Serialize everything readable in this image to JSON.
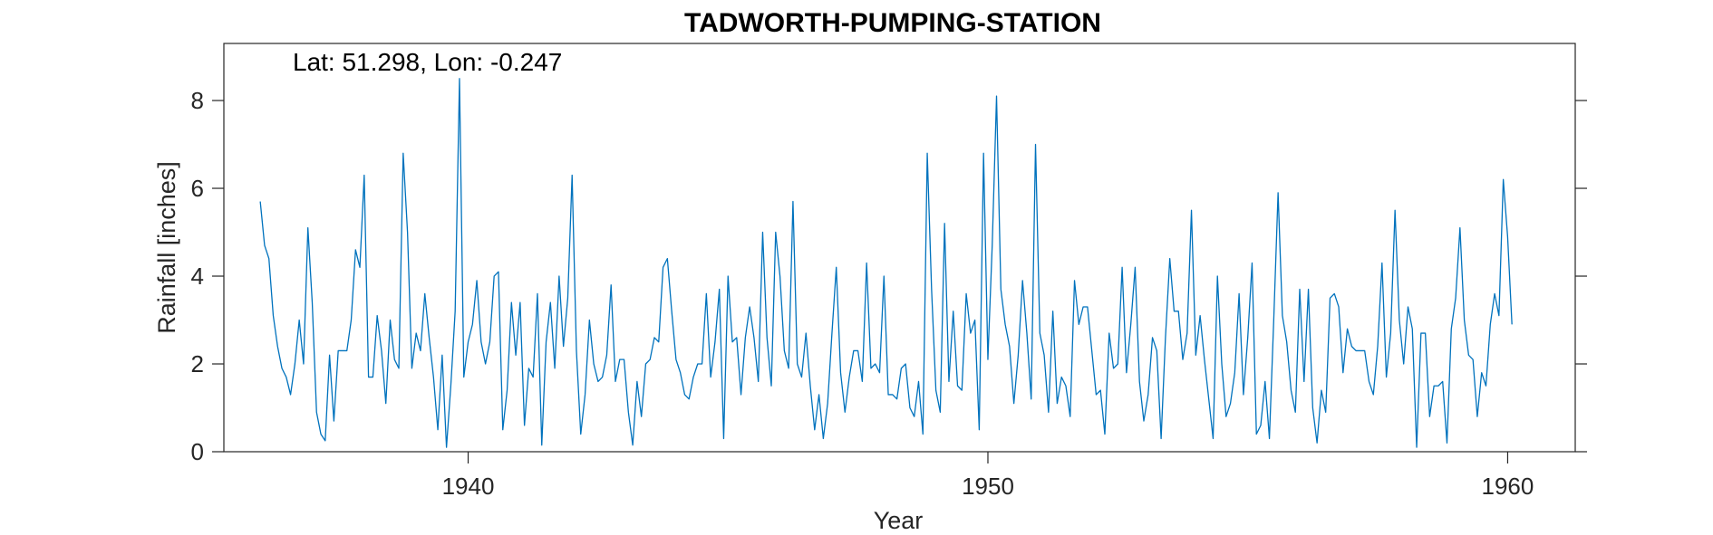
{
  "chart_data": {
    "type": "line",
    "title": "TADWORTH-PUMPING-STATION",
    "annotation": "Lat: 51.298, Lon: -0.247",
    "xlabel": "Year",
    "ylabel": "Rainfall [inches]",
    "xlim": [
      1935.3,
      1961.3
    ],
    "ylim": [
      0,
      9.3
    ],
    "xticks": [
      1940,
      1950,
      1960
    ],
    "yticks": [
      0,
      2,
      4,
      6,
      8
    ],
    "grid": false,
    "line_color": "#0072BD",
    "series": [
      {
        "x_start": 1936.0,
        "x_step": 0.08333,
        "values": [
          5.7,
          4.7,
          4.4,
          3.1,
          2.4,
          1.9,
          1.7,
          1.3,
          2.0,
          3.0,
          2.0,
          5.1,
          3.4,
          0.9,
          0.4,
          0.25,
          2.2,
          0.7,
          2.3,
          2.3,
          2.3,
          3.0,
          4.6,
          4.2,
          6.3,
          1.7,
          1.7,
          3.1,
          2.3,
          1.1,
          3.0,
          2.1,
          1.9,
          6.8,
          5.0,
          1.9,
          2.7,
          2.3,
          3.6,
          2.6,
          1.7,
          0.5,
          2.2,
          0.1,
          1.5,
          3.2,
          8.5,
          1.7,
          2.5,
          2.9,
          3.9,
          2.5,
          2.0,
          2.5,
          4.0,
          4.1,
          0.5,
          1.4,
          3.4,
          2.2,
          3.4,
          0.6,
          1.9,
          1.7,
          3.6,
          0.15,
          2.5,
          3.4,
          1.9,
          4.0,
          2.4,
          3.5,
          6.3,
          2.3,
          0.4,
          1.3,
          3.0,
          2.0,
          1.6,
          1.7,
          2.2,
          3.8,
          1.6,
          2.1,
          2.1,
          0.9,
          0.15,
          1.6,
          0.8,
          2.0,
          2.1,
          2.6,
          2.5,
          4.2,
          4.4,
          3.2,
          2.1,
          1.8,
          1.3,
          1.2,
          1.7,
          2.0,
          2.0,
          3.6,
          1.7,
          2.5,
          3.7,
          0.3,
          4.0,
          2.5,
          2.6,
          1.3,
          2.6,
          3.3,
          2.6,
          1.6,
          5.0,
          2.6,
          1.5,
          5.0,
          4.0,
          2.3,
          1.9,
          5.7,
          2.0,
          1.7,
          2.7,
          1.5,
          0.5,
          1.3,
          0.3,
          1.1,
          2.7,
          4.2,
          1.8,
          0.9,
          1.7,
          2.3,
          2.3,
          1.6,
          4.3,
          1.9,
          2.0,
          1.8,
          4.0,
          1.3,
          1.3,
          1.2,
          1.9,
          2.0,
          1.0,
          0.8,
          1.6,
          0.4,
          6.8,
          3.7,
          1.4,
          0.9,
          5.2,
          1.6,
          3.2,
          1.5,
          1.4,
          3.6,
          2.7,
          3.0,
          0.5,
          6.8,
          2.1,
          4.7,
          8.1,
          3.7,
          2.9,
          2.4,
          1.1,
          2.2,
          3.9,
          2.7,
          1.2,
          7.0,
          2.7,
          2.2,
          0.9,
          3.2,
          1.1,
          1.7,
          1.5,
          0.8,
          3.9,
          2.9,
          3.3,
          3.3,
          2.3,
          1.3,
          1.4,
          0.4,
          2.7,
          1.9,
          2.0,
          4.2,
          1.8,
          2.9,
          4.2,
          1.6,
          0.7,
          1.3,
          2.6,
          2.3,
          0.3,
          2.6,
          4.4,
          3.2,
          3.2,
          2.1,
          2.7,
          5.5,
          2.2,
          3.1,
          2.1,
          1.2,
          0.3,
          4.0,
          2.0,
          0.8,
          1.1,
          1.8,
          3.6,
          1.3,
          2.6,
          4.3,
          0.4,
          0.6,
          1.6,
          0.3,
          3.0,
          5.9,
          3.1,
          2.5,
          1.4,
          0.9,
          3.7,
          1.6,
          3.7,
          1.0,
          0.2,
          1.4,
          0.9,
          3.5,
          3.6,
          3.3,
          1.8,
          2.8,
          2.4,
          2.3,
          2.3,
          2.3,
          1.6,
          1.3,
          2.4,
          4.3,
          1.7,
          2.7,
          5.5,
          3.0,
          2.0,
          3.3,
          2.8,
          0.1,
          2.7,
          2.7,
          0.8,
          1.5,
          1.5,
          1.6,
          0.2,
          2.8,
          3.5,
          5.1,
          3.0,
          2.2,
          2.1,
          0.8,
          1.8,
          1.5,
          2.9,
          3.6,
          3.1,
          6.2,
          4.9,
          2.9
        ]
      }
    ]
  }
}
